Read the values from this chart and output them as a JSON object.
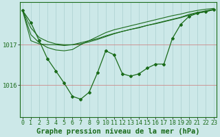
{
  "background_color": "#cce8e8",
  "plot_background": "#cce8e8",
  "line_color": "#1a6b1a",
  "grid_color_v": "#aacfcf",
  "grid_color_h": "#aacfcf",
  "redline_color": "#cc8888",
  "text_color": "#1a6b1a",
  "xlabel": "Graphe pression niveau de la mer (hPa)",
  "xlabel_fontsize": 7.5,
  "tick_fontsize": 6,
  "ylim": [
    1015.2,
    1018.05
  ],
  "yticks": [
    1016.0,
    1017.0
  ],
  "xlim": [
    -0.3,
    23.3
  ],
  "hours": [
    0,
    1,
    2,
    3,
    4,
    5,
    6,
    7,
    8,
    9,
    10,
    11,
    12,
    13,
    14,
    15,
    16,
    17,
    18,
    19,
    20,
    21,
    22,
    23
  ],
  "main_series": [
    1017.85,
    1017.55,
    1017.1,
    1016.65,
    1016.35,
    1016.05,
    1015.72,
    1015.65,
    1015.82,
    1016.3,
    1016.85,
    1016.75,
    1016.28,
    1016.22,
    1016.28,
    1016.42,
    1016.52,
    1016.52,
    1017.15,
    1017.5,
    1017.7,
    1017.78,
    1017.82,
    1017.87
  ],
  "forecast_lines": [
    [
      1017.85,
      1017.1,
      1017.02,
      1017.0,
      1017.0,
      1016.98,
      1017.0,
      1017.05,
      1017.1,
      1017.15,
      1017.22,
      1017.28,
      1017.33,
      1017.38,
      1017.42,
      1017.48,
      1017.52,
      1017.57,
      1017.62,
      1017.67,
      1017.73,
      1017.78,
      1017.82,
      1017.87
    ],
    [
      1017.85,
      1017.42,
      1017.18,
      1017.08,
      1017.02,
      1017.0,
      1017.0,
      1017.02,
      1017.07,
      1017.13,
      1017.2,
      1017.27,
      1017.33,
      1017.38,
      1017.43,
      1017.48,
      1017.53,
      1017.58,
      1017.63,
      1017.68,
      1017.75,
      1017.8,
      1017.84,
      1017.88
    ],
    [
      1017.85,
      1017.25,
      1017.05,
      1016.93,
      1016.87,
      1016.85,
      1016.88,
      1017.0,
      1017.1,
      1017.2,
      1017.3,
      1017.37,
      1017.42,
      1017.47,
      1017.52,
      1017.57,
      1017.62,
      1017.67,
      1017.72,
      1017.76,
      1017.81,
      1017.85,
      1017.88,
      1017.9
    ]
  ]
}
